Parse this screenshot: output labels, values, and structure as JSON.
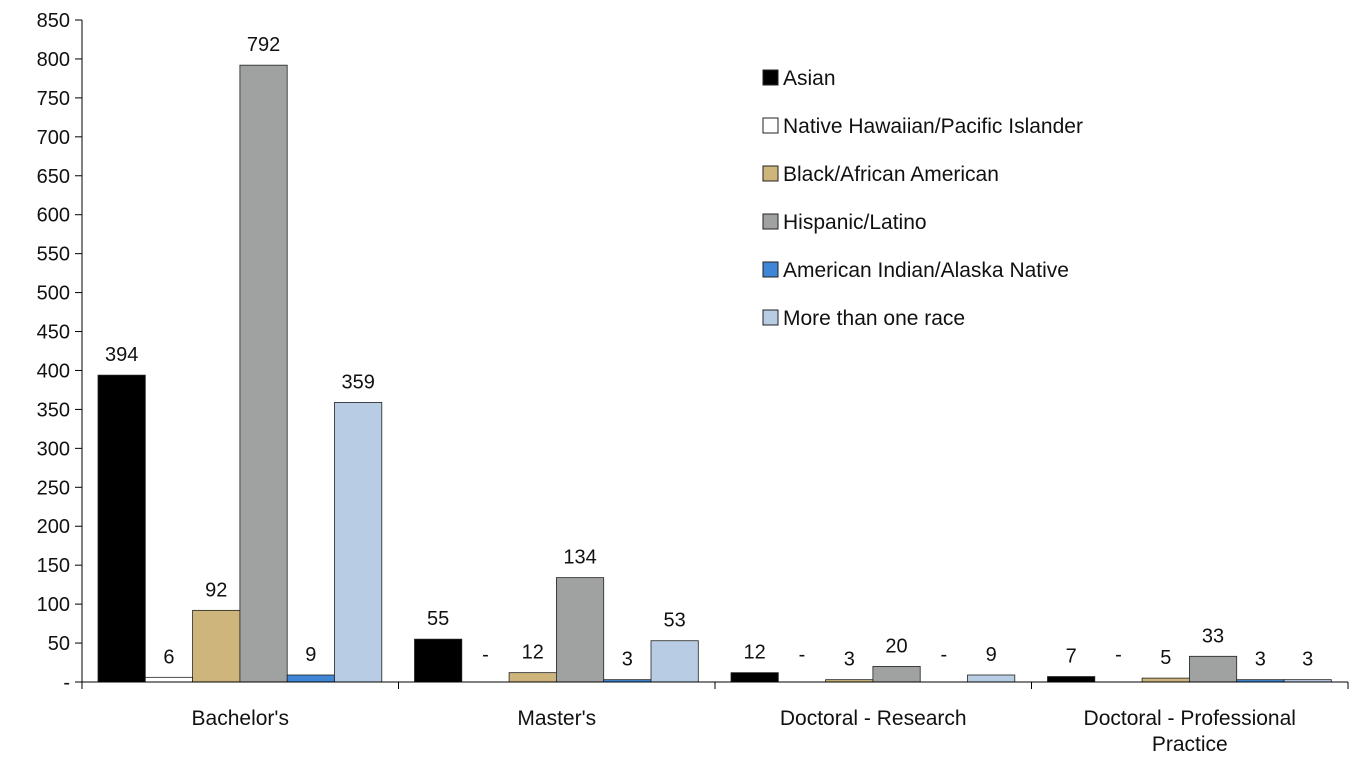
{
  "chart_data": {
    "type": "bar",
    "title": "",
    "xlabel": "",
    "ylabel": "",
    "ylim": [
      0,
      850
    ],
    "yticks": [
      0,
      50,
      100,
      150,
      200,
      250,
      300,
      350,
      400,
      450,
      500,
      550,
      600,
      650,
      700,
      750,
      800,
      850
    ],
    "ytick_labels": [
      "-",
      "50",
      "100",
      "150",
      "200",
      "250",
      "300",
      "350",
      "400",
      "450",
      "500",
      "550",
      "600",
      "650",
      "700",
      "750",
      "800",
      "850"
    ],
    "categories": [
      [
        "Bachelor's"
      ],
      [
        "Master's"
      ],
      [
        "Doctoral - Research"
      ],
      [
        "Doctoral - Professional",
        "Practice"
      ]
    ],
    "legend_position": "top-right",
    "series": [
      {
        "name": "Asian",
        "color": "#000000",
        "values": [
          394,
          55,
          12,
          7
        ],
        "labels": [
          "394",
          "55",
          "12",
          "7"
        ]
      },
      {
        "name": "Native Hawaiian/Pacific Islander",
        "color": "#ffffff",
        "values": [
          6,
          0,
          0,
          0
        ],
        "labels": [
          "6",
          "-",
          "-",
          "-"
        ]
      },
      {
        "name": "Black/African American",
        "color": "#cdb57b",
        "values": [
          92,
          12,
          3,
          5
        ],
        "labels": [
          "92",
          "12",
          "3",
          "5"
        ]
      },
      {
        "name": "Hispanic/Latino",
        "color": "#a0a2a1",
        "values": [
          792,
          134,
          20,
          33
        ],
        "labels": [
          "792",
          "134",
          "20",
          "33"
        ]
      },
      {
        "name": "American Indian/Alaska Native",
        "color": "#3f86d6",
        "values": [
          9,
          3,
          0,
          3
        ],
        "labels": [
          "9",
          "3",
          "-",
          "3"
        ]
      },
      {
        "name": "More than one race",
        "color": "#b8cce4",
        "values": [
          359,
          53,
          9,
          3
        ],
        "labels": [
          "359",
          "53",
          "9",
          "3"
        ]
      }
    ]
  }
}
